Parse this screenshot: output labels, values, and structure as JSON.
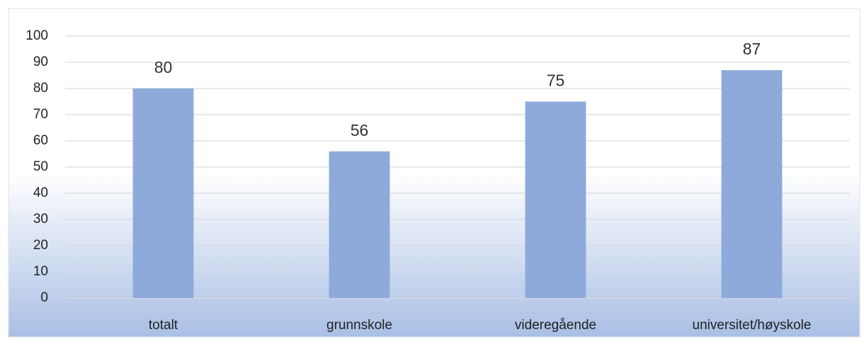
{
  "chart_data": {
    "type": "bar",
    "categories": [
      "totalt",
      "grunnskole",
      "videregående",
      "universitet/høyskole"
    ],
    "values": [
      80,
      56,
      75,
      87
    ],
    "color": "#8eaadb",
    "ylim": [
      0,
      100
    ],
    "yticks": [
      0,
      10,
      20,
      30,
      40,
      50,
      60,
      70,
      80,
      90,
      100
    ],
    "grid": true,
    "data_labels": true
  }
}
